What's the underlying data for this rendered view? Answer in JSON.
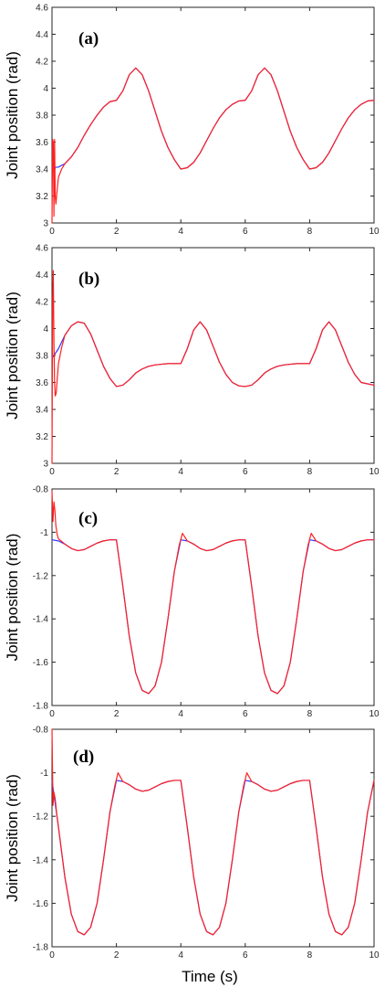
{
  "figure": {
    "xlabel": "Time (s)"
  },
  "chart_data": [
    {
      "type": "line",
      "panel_label": "(a)",
      "ylabel": "Joint position (rad)",
      "xlabel": "",
      "xlim": [
        0,
        10
      ],
      "ylim": [
        3,
        4.6
      ],
      "xticks": [
        0,
        2,
        4,
        6,
        8,
        10
      ],
      "yticks": [
        3,
        3.2,
        3.4,
        3.6,
        3.8,
        4,
        4.2,
        4.4,
        4.6
      ],
      "yticklabels": [
        "3",
        "3.2",
        "3.4",
        "3.6",
        "3.8",
        "4",
        "4.2",
        "4.4",
        "4.6"
      ],
      "grid": false,
      "series": [
        {
          "color": "#3333ff",
          "x": [
            0,
            0.2,
            0.4,
            0.6,
            0.8,
            1.0,
            1.2,
            1.4,
            1.6,
            1.8,
            2.0,
            2.2,
            2.4,
            2.6,
            2.8,
            3.0,
            3.2,
            3.4,
            3.6,
            3.8,
            4.0,
            4.2,
            4.4,
            4.6,
            4.8,
            5.0,
            5.2,
            5.4,
            5.6,
            5.8,
            6.0,
            6.2,
            6.4,
            6.6,
            6.8,
            7.0,
            7.2,
            7.4,
            7.6,
            7.8,
            8.0,
            8.2,
            8.4,
            8.6,
            8.8,
            9.0,
            9.2,
            9.4,
            9.6,
            9.8,
            10.0
          ],
          "y": [
            3.41,
            3.415,
            3.44,
            3.49,
            3.56,
            3.65,
            3.73,
            3.8,
            3.86,
            3.9,
            3.91,
            3.98,
            4.1,
            4.15,
            4.1,
            3.98,
            3.83,
            3.68,
            3.56,
            3.47,
            3.4,
            3.41,
            3.45,
            3.52,
            3.61,
            3.7,
            3.78,
            3.84,
            3.88,
            3.905,
            3.91,
            3.98,
            4.1,
            4.15,
            4.1,
            3.98,
            3.83,
            3.68,
            3.56,
            3.47,
            3.4,
            3.41,
            3.45,
            3.52,
            3.61,
            3.7,
            3.78,
            3.84,
            3.88,
            3.905,
            3.91
          ]
        },
        {
          "color": "#ff2020",
          "x": [
            0,
            0.02,
            0.04,
            0.06,
            0.08,
            0.1,
            0.12,
            0.15,
            0.2,
            0.3,
            0.4,
            0.6,
            0.8,
            1.0,
            1.2,
            1.4,
            1.6,
            1.8,
            2.0,
            2.2,
            2.4,
            2.6,
            2.8,
            3.0,
            3.2,
            3.4,
            3.6,
            3.8,
            4.0,
            4.2,
            4.4,
            4.6,
            4.8,
            5.0,
            5.2,
            5.4,
            5.6,
            5.8,
            6.0,
            6.2,
            6.4,
            6.6,
            6.8,
            7.0,
            7.2,
            7.4,
            7.6,
            7.8,
            8.0,
            8.2,
            8.4,
            8.6,
            8.8,
            9.0,
            9.2,
            9.4,
            9.6,
            9.8,
            10.0
          ],
          "y": [
            3.0,
            3.62,
            3.6,
            3.05,
            3.62,
            3.2,
            3.14,
            3.22,
            3.34,
            3.4,
            3.44,
            3.49,
            3.56,
            3.65,
            3.73,
            3.8,
            3.86,
            3.9,
            3.91,
            3.98,
            4.1,
            4.15,
            4.1,
            3.98,
            3.83,
            3.68,
            3.56,
            3.47,
            3.4,
            3.41,
            3.45,
            3.52,
            3.61,
            3.7,
            3.78,
            3.84,
            3.88,
            3.905,
            3.91,
            3.98,
            4.1,
            4.15,
            4.1,
            3.98,
            3.83,
            3.68,
            3.56,
            3.47,
            3.4,
            3.41,
            3.45,
            3.52,
            3.61,
            3.7,
            3.78,
            3.84,
            3.88,
            3.905,
            3.91
          ]
        }
      ]
    },
    {
      "type": "line",
      "panel_label": "(b)",
      "ylabel": "Joint position (rad)",
      "xlabel": "",
      "xlim": [
        0,
        10
      ],
      "ylim": [
        3,
        4.6
      ],
      "xticks": [
        0,
        2,
        4,
        6,
        8,
        10
      ],
      "yticks": [
        3,
        3.2,
        3.4,
        3.6,
        3.8,
        4,
        4.2,
        4.4,
        4.6
      ],
      "yticklabels": [
        "3",
        "3.2",
        "3.4",
        "3.6",
        "3.8",
        "4",
        "4.2",
        "4.4",
        "4.6"
      ],
      "grid": false,
      "series": [
        {
          "color": "#3333ff",
          "x": [
            0,
            0.2,
            0.4,
            0.6,
            0.8,
            1.0,
            1.2,
            1.4,
            1.6,
            1.8,
            2.0,
            2.2,
            2.4,
            2.6,
            2.8,
            3.0,
            3.2,
            3.4,
            3.6,
            3.8,
            4.0,
            4.2,
            4.4,
            4.6,
            4.8,
            5.0,
            5.2,
            5.4,
            5.6,
            5.8,
            6.0,
            6.2,
            6.4,
            6.6,
            6.8,
            7.0,
            7.2,
            7.4,
            7.6,
            7.8,
            8.0,
            8.2,
            8.4,
            8.6,
            8.8,
            9.0,
            9.2,
            9.4,
            9.6,
            9.8,
            10.0
          ],
          "y": [
            3.78,
            3.85,
            3.95,
            4.02,
            4.05,
            4.04,
            3.96,
            3.84,
            3.72,
            3.63,
            3.57,
            3.58,
            3.62,
            3.67,
            3.7,
            3.72,
            3.73,
            3.735,
            3.74,
            3.74,
            3.74,
            3.85,
            3.99,
            4.05,
            3.99,
            3.87,
            3.75,
            3.66,
            3.6,
            3.575,
            3.57,
            3.58,
            3.62,
            3.67,
            3.7,
            3.72,
            3.73,
            3.735,
            3.74,
            3.74,
            3.74,
            3.85,
            3.99,
            4.05,
            3.99,
            3.87,
            3.75,
            3.66,
            3.6,
            3.59,
            3.58
          ]
        },
        {
          "color": "#ff2020",
          "x": [
            0,
            0.02,
            0.04,
            0.06,
            0.08,
            0.1,
            0.13,
            0.16,
            0.2,
            0.3,
            0.4,
            0.6,
            0.8,
            1.0,
            1.2,
            1.4,
            1.6,
            1.8,
            2.0,
            2.2,
            2.4,
            2.6,
            2.8,
            3.0,
            3.2,
            3.4,
            3.6,
            3.8,
            4.0,
            4.2,
            4.4,
            4.6,
            4.8,
            5.0,
            5.2,
            5.4,
            5.6,
            5.8,
            6.0,
            6.2,
            6.4,
            6.6,
            6.8,
            7.0,
            7.2,
            7.4,
            7.6,
            7.8,
            8.0,
            8.2,
            8.4,
            8.6,
            8.8,
            9.0,
            9.2,
            9.4,
            9.6,
            9.8,
            10.0
          ],
          "y": [
            3.0,
            4.2,
            4.43,
            3.9,
            3.6,
            3.5,
            3.52,
            3.62,
            3.74,
            3.86,
            3.95,
            4.02,
            4.05,
            4.04,
            3.96,
            3.84,
            3.72,
            3.63,
            3.57,
            3.58,
            3.62,
            3.67,
            3.7,
            3.72,
            3.73,
            3.735,
            3.74,
            3.74,
            3.74,
            3.85,
            3.99,
            4.05,
            3.99,
            3.87,
            3.75,
            3.66,
            3.6,
            3.575,
            3.57,
            3.58,
            3.62,
            3.67,
            3.7,
            3.72,
            3.73,
            3.735,
            3.74,
            3.74,
            3.74,
            3.85,
            3.99,
            4.05,
            3.99,
            3.87,
            3.75,
            3.66,
            3.6,
            3.59,
            3.58
          ]
        }
      ]
    },
    {
      "type": "line",
      "panel_label": "(c)",
      "ylabel": "Joint position (rad)",
      "xlabel": "",
      "xlim": [
        0,
        10
      ],
      "ylim": [
        -1.8,
        -0.8
      ],
      "xticks": [
        0,
        2,
        4,
        6,
        8,
        10
      ],
      "yticks": [
        -1.8,
        -1.6,
        -1.4,
        -1.2,
        -1,
        -0.8
      ],
      "yticklabels": [
        "-1.8",
        "-1.6",
        "-1.4",
        "-1.2",
        "-1",
        "-0.8"
      ],
      "grid": false,
      "series": [
        {
          "color": "#3333ff",
          "x": [
            0,
            0.2,
            0.4,
            0.6,
            0.8,
            1.0,
            1.2,
            1.4,
            1.6,
            1.8,
            2.0,
            2.2,
            2.4,
            2.6,
            2.8,
            3.0,
            3.2,
            3.4,
            3.6,
            3.8,
            4.0,
            4.2,
            4.4,
            4.6,
            4.8,
            5.0,
            5.2,
            5.4,
            5.6,
            5.8,
            6.0,
            6.2,
            6.4,
            6.6,
            6.8,
            7.0,
            7.2,
            7.4,
            7.6,
            7.8,
            8.0,
            8.2,
            8.4,
            8.6,
            8.8,
            9.0,
            9.2,
            9.4,
            9.6,
            9.8,
            10.0
          ],
          "y": [
            -1.035,
            -1.04,
            -1.055,
            -1.075,
            -1.085,
            -1.08,
            -1.065,
            -1.05,
            -1.04,
            -1.035,
            -1.035,
            -1.25,
            -1.48,
            -1.65,
            -1.73,
            -1.745,
            -1.71,
            -1.6,
            -1.4,
            -1.18,
            -1.035,
            -1.04,
            -1.055,
            -1.075,
            -1.085,
            -1.08,
            -1.065,
            -1.05,
            -1.04,
            -1.035,
            -1.035,
            -1.25,
            -1.48,
            -1.65,
            -1.73,
            -1.745,
            -1.71,
            -1.6,
            -1.4,
            -1.18,
            -1.035,
            -1.04,
            -1.055,
            -1.075,
            -1.085,
            -1.08,
            -1.065,
            -1.05,
            -1.04,
            -1.035,
            -1.035
          ]
        },
        {
          "color": "#ff2020",
          "x": [
            0,
            0.03,
            0.06,
            0.09,
            0.12,
            0.16,
            0.2,
            0.4,
            0.6,
            0.8,
            1.0,
            1.2,
            1.4,
            1.6,
            1.8,
            2.0,
            2.2,
            2.4,
            2.6,
            2.8,
            3.0,
            3.2,
            3.4,
            3.6,
            3.8,
            3.95,
            4.05,
            4.2,
            4.4,
            4.6,
            4.8,
            5.0,
            5.2,
            5.4,
            5.6,
            5.8,
            6.0,
            6.2,
            6.4,
            6.6,
            6.8,
            7.0,
            7.2,
            7.4,
            7.6,
            7.8,
            7.95,
            8.05,
            8.2,
            8.4,
            8.6,
            8.8,
            9.0,
            9.2,
            9.4,
            9.6,
            9.8,
            10.0
          ],
          "y": [
            -0.81,
            -0.95,
            -0.86,
            -0.9,
            -0.97,
            -1.01,
            -1.03,
            -1.055,
            -1.075,
            -1.085,
            -1.08,
            -1.065,
            -1.05,
            -1.04,
            -1.035,
            -1.035,
            -1.25,
            -1.48,
            -1.65,
            -1.73,
            -1.745,
            -1.71,
            -1.6,
            -1.4,
            -1.18,
            -1.06,
            -1.005,
            -1.04,
            -1.055,
            -1.075,
            -1.085,
            -1.08,
            -1.065,
            -1.05,
            -1.04,
            -1.035,
            -1.035,
            -1.25,
            -1.48,
            -1.65,
            -1.73,
            -1.745,
            -1.71,
            -1.6,
            -1.4,
            -1.18,
            -1.06,
            -1.005,
            -1.04,
            -1.055,
            -1.075,
            -1.085,
            -1.08,
            -1.065,
            -1.05,
            -1.04,
            -1.035,
            -1.035
          ]
        }
      ]
    },
    {
      "type": "line",
      "panel_label": "(d)",
      "ylabel": "Joint position (rad)",
      "xlabel": "Time (s)",
      "xlim": [
        0,
        10
      ],
      "ylim": [
        -1.8,
        -0.8
      ],
      "xticks": [
        0,
        2,
        4,
        6,
        8,
        10
      ],
      "yticks": [
        -1.8,
        -1.6,
        -1.4,
        -1.2,
        -1,
        -0.8
      ],
      "yticklabels": [
        "-1.8",
        "-1.6",
        "-1.4",
        "-1.2",
        "-1",
        "-0.8"
      ],
      "grid": false,
      "series": [
        {
          "color": "#3333ff",
          "x": [
            0,
            0.2,
            0.4,
            0.6,
            0.8,
            1.0,
            1.2,
            1.4,
            1.6,
            1.8,
            2.0,
            2.2,
            2.4,
            2.6,
            2.8,
            3.0,
            3.2,
            3.4,
            3.6,
            3.8,
            4.0,
            4.2,
            4.4,
            4.6,
            4.8,
            5.0,
            5.2,
            5.4,
            5.6,
            5.8,
            6.0,
            6.2,
            6.4,
            6.6,
            6.8,
            7.0,
            7.2,
            7.4,
            7.6,
            7.8,
            8.0,
            8.2,
            8.4,
            8.6,
            8.8,
            9.0,
            9.2,
            9.4,
            9.6,
            9.8,
            10.0
          ],
          "y": [
            -1.035,
            -1.25,
            -1.48,
            -1.65,
            -1.73,
            -1.745,
            -1.71,
            -1.6,
            -1.4,
            -1.18,
            -1.035,
            -1.04,
            -1.055,
            -1.075,
            -1.085,
            -1.08,
            -1.065,
            -1.05,
            -1.04,
            -1.035,
            -1.035,
            -1.25,
            -1.48,
            -1.65,
            -1.73,
            -1.745,
            -1.71,
            -1.6,
            -1.4,
            -1.18,
            -1.035,
            -1.04,
            -1.055,
            -1.075,
            -1.085,
            -1.08,
            -1.065,
            -1.05,
            -1.04,
            -1.035,
            -1.035,
            -1.25,
            -1.48,
            -1.65,
            -1.73,
            -1.745,
            -1.71,
            -1.6,
            -1.4,
            -1.18,
            -1.035
          ]
        },
        {
          "color": "#ff2020",
          "x": [
            0,
            0.03,
            0.06,
            0.1,
            0.14,
            0.2,
            0.4,
            0.6,
            0.8,
            1.0,
            1.2,
            1.4,
            1.6,
            1.8,
            1.95,
            2.05,
            2.2,
            2.4,
            2.6,
            2.8,
            3.0,
            3.2,
            3.4,
            3.6,
            3.8,
            4.0,
            4.2,
            4.4,
            4.6,
            4.8,
            5.0,
            5.2,
            5.4,
            5.6,
            5.8,
            5.95,
            6.05,
            6.2,
            6.4,
            6.6,
            6.8,
            7.0,
            7.2,
            7.4,
            7.6,
            7.8,
            8.0,
            8.2,
            8.4,
            8.6,
            8.8,
            9.0,
            9.2,
            9.4,
            9.6,
            9.8,
            10.0
          ],
          "y": [
            -0.8,
            -1.15,
            -1.09,
            -1.12,
            -1.18,
            -1.25,
            -1.48,
            -1.65,
            -1.73,
            -1.745,
            -1.71,
            -1.6,
            -1.4,
            -1.18,
            -1.06,
            -1.0,
            -1.04,
            -1.055,
            -1.075,
            -1.085,
            -1.08,
            -1.065,
            -1.05,
            -1.04,
            -1.035,
            -1.035,
            -1.25,
            -1.48,
            -1.65,
            -1.73,
            -1.745,
            -1.71,
            -1.6,
            -1.4,
            -1.18,
            -1.06,
            -1.0,
            -1.04,
            -1.055,
            -1.075,
            -1.085,
            -1.08,
            -1.065,
            -1.05,
            -1.04,
            -1.035,
            -1.035,
            -1.25,
            -1.48,
            -1.65,
            -1.73,
            -1.745,
            -1.71,
            -1.6,
            -1.4,
            -1.18,
            -1.035
          ]
        }
      ]
    }
  ]
}
